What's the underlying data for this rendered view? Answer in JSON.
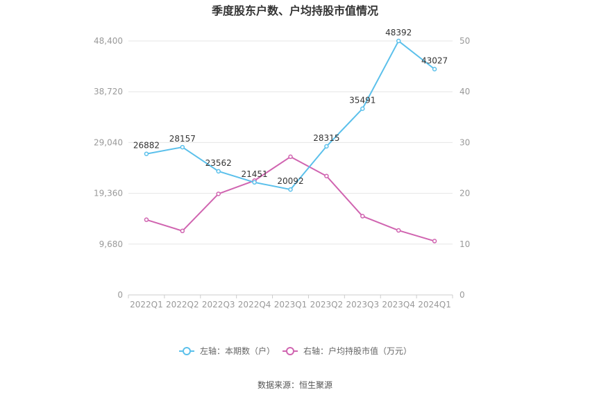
{
  "chart_data": {
    "type": "line",
    "title": "季度股东户数、户均持股市值情况",
    "categories": [
      "2022Q1",
      "2022Q2",
      "2022Q3",
      "2022Q4",
      "2023Q1",
      "2023Q2",
      "2023Q3",
      "2023Q4",
      "2024Q1"
    ],
    "left_axis": {
      "ylim": [
        0,
        48400
      ],
      "ticks": [
        "0",
        "9,680",
        "19,360",
        "29,040",
        "38,720",
        "48,400"
      ]
    },
    "right_axis": {
      "ylim": [
        0,
        50
      ],
      "ticks": [
        "0",
        "10",
        "20",
        "30",
        "40",
        "50"
      ]
    },
    "series": [
      {
        "name": "左轴：本期数（户）",
        "axis": "left",
        "color": "#5bc0eb",
        "values": [
          26882,
          28157,
          23562,
          21451,
          20092,
          28315,
          35491,
          48392,
          43027
        ],
        "labels": [
          "26882",
          "28157",
          "23562",
          "21451",
          "20092",
          "28315",
          "35491",
          "48392",
          "43027"
        ]
      },
      {
        "name": "右轴：户均持股市值（万元）",
        "axis": "right",
        "color": "#d064b0",
        "values": [
          14.8,
          12.6,
          19.9,
          22.5,
          27.2,
          23.4,
          15.5,
          12.7,
          10.6
        ]
      }
    ],
    "grid": true,
    "legend_position": "bottom",
    "source": "数据来源：恒生聚源"
  }
}
